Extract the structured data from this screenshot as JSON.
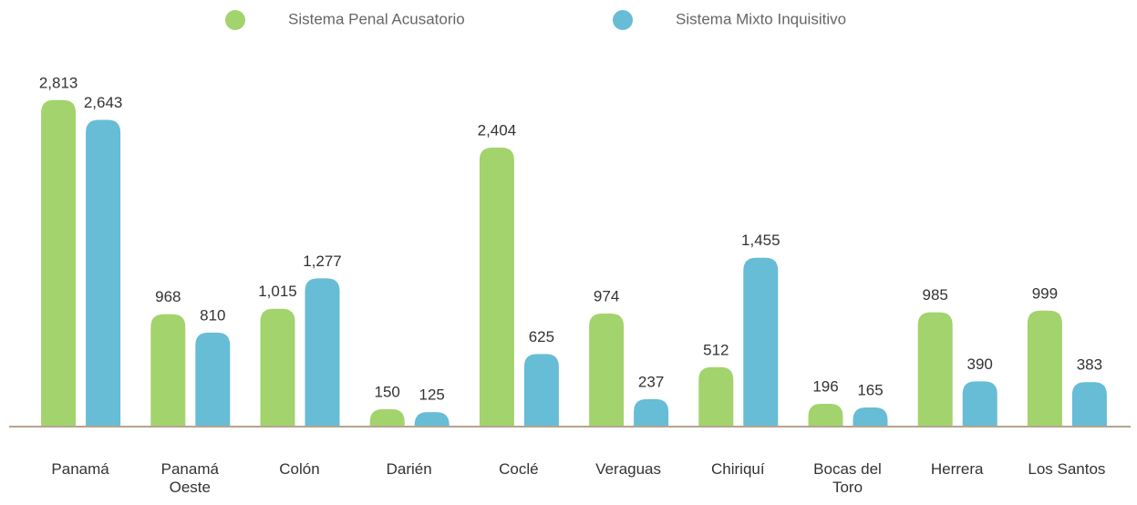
{
  "chart_data": {
    "type": "bar",
    "categories": [
      "Panamá",
      "Panamá Oeste",
      "Colón",
      "Darién",
      "Coclé",
      "Veraguas",
      "Chiriquí",
      "Bocas del Toro",
      "Herrera",
      "Los Santos"
    ],
    "series": [
      {
        "name": "Sistema Penal Acusatorio",
        "color": "#a3d36c",
        "values": [
          2813,
          968,
          1015,
          150,
          2404,
          974,
          512,
          196,
          985,
          999
        ],
        "value_labels": [
          "2,813",
          "968",
          "1,015",
          "150",
          "2,404",
          "974",
          "512",
          "196",
          "985",
          "999"
        ]
      },
      {
        "name": "Sistema Mixto Inquisitivo",
        "color": "#67bcd6",
        "values": [
          2643,
          810,
          1277,
          125,
          625,
          237,
          1455,
          165,
          390,
          383
        ],
        "value_labels": [
          "2,643",
          "810",
          "1,277",
          "125",
          "625",
          "237",
          "1,455",
          "165",
          "390",
          "383"
        ]
      }
    ],
    "ylim": [
      0,
      3000
    ],
    "legend": "top"
  }
}
